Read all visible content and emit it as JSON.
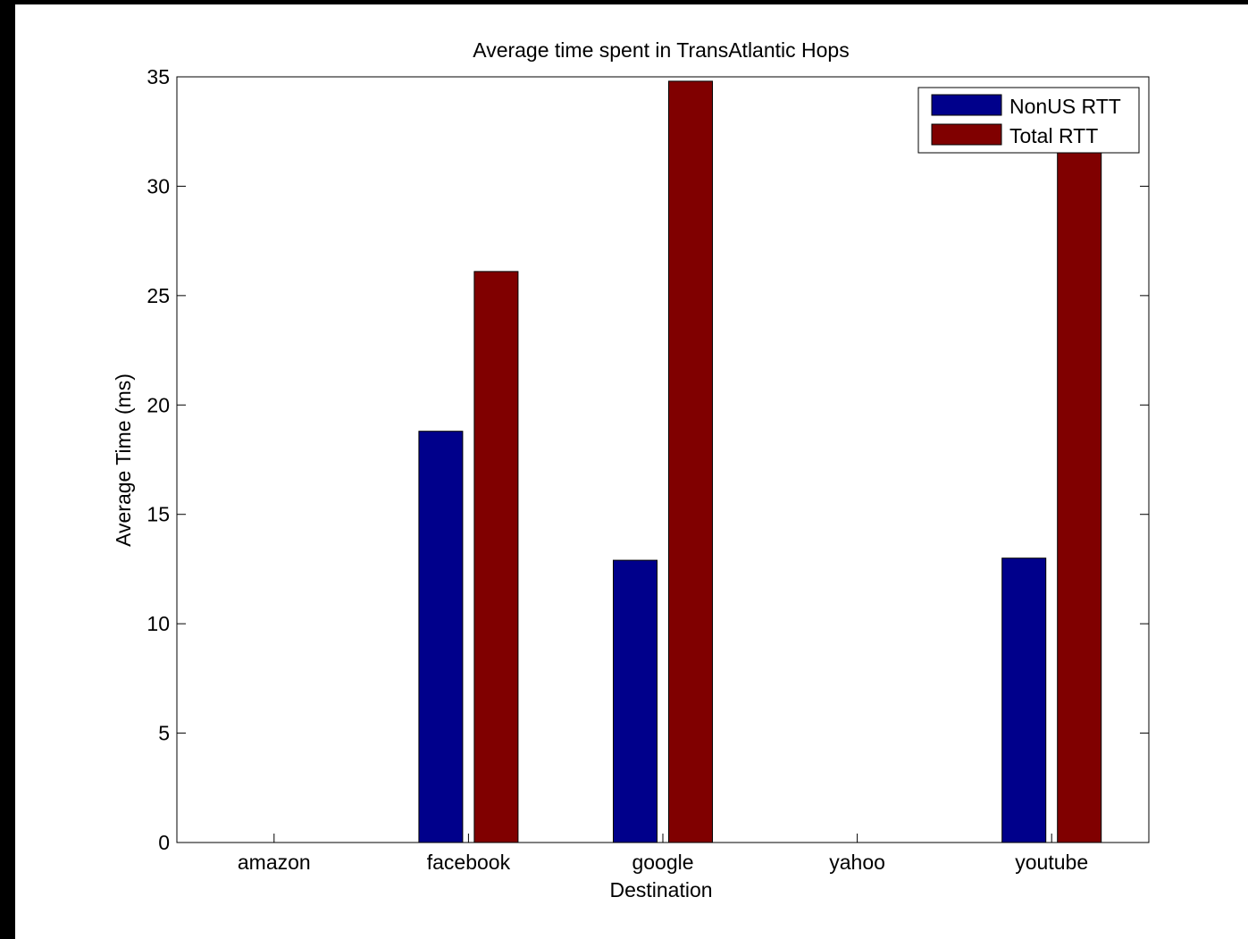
{
  "chart_data": {
    "type": "bar",
    "title": "Average time spent in TransAtlantic Hops",
    "xlabel": "Destination",
    "ylabel": "Average Time (ms)",
    "categories": [
      "amazon",
      "facebook",
      "google",
      "yahoo",
      "youtube"
    ],
    "series": [
      {
        "name": "NonUS RTT",
        "values": [
          0,
          18.8,
          12.9,
          0,
          13.0
        ],
        "color": "#00008b"
      },
      {
        "name": "Total RTT",
        "values": [
          0,
          26.1,
          34.8,
          0,
          31.8
        ],
        "color": "#800000"
      }
    ],
    "ylim": [
      0,
      35
    ],
    "yticks": [
      "0",
      "5",
      "10",
      "15",
      "20",
      "25",
      "30",
      "35"
    ],
    "grid": false,
    "legend_position": "top-right"
  }
}
